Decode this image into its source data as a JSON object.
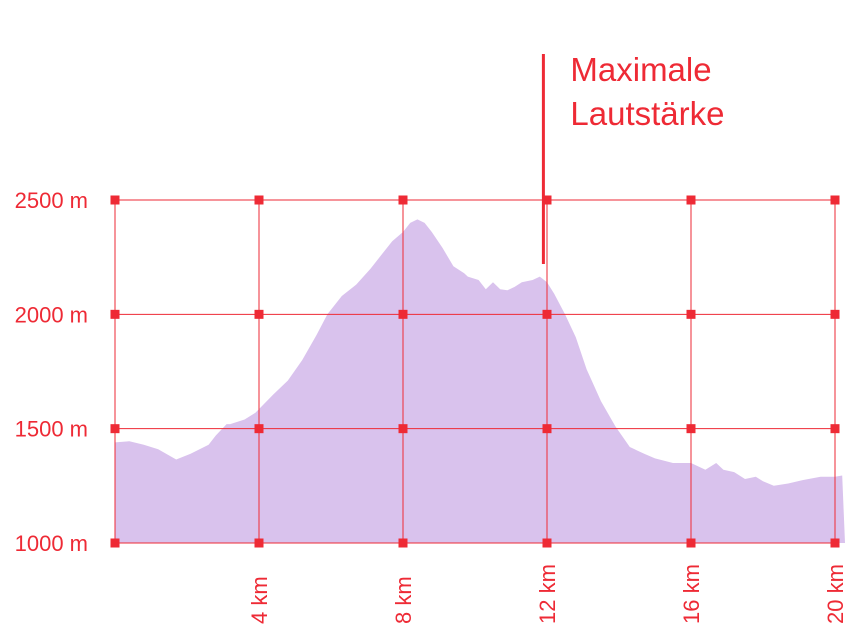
{
  "colors": {
    "accent": "#ee2a35",
    "area": "#d9c2ed",
    "background": "#ffffff"
  },
  "chart_data": {
    "type": "area",
    "title": "",
    "xlabel": "",
    "ylabel": "",
    "xlim": [
      0,
      20
    ],
    "ylim": [
      1000,
      2500
    ],
    "grid": true,
    "y_ticks": [
      {
        "value": 2500,
        "label": "2500 m"
      },
      {
        "value": 2000,
        "label": "2000 m"
      },
      {
        "value": 1500,
        "label": "1500 m"
      },
      {
        "value": 1000,
        "label": "1000 m"
      }
    ],
    "x_ticks": [
      {
        "value": 4,
        "label": "4 km"
      },
      {
        "value": 8,
        "label": "8 km"
      },
      {
        "value": 12,
        "label": "12 km"
      },
      {
        "value": 16,
        "label": "16 km"
      },
      {
        "value": 20,
        "label": "20 km"
      }
    ],
    "annotation": {
      "line1": "Maximale",
      "line2": "Lautstärke",
      "x": 11.9
    },
    "series": [
      {
        "x": [
          0,
          0.4,
          0.8,
          1.2,
          1.7,
          2.1,
          2.6,
          2.8,
          3.1,
          3.2,
          3.6,
          3.9,
          4.4,
          4.8,
          5.2,
          5.6,
          5.9,
          6.3,
          6.7,
          7.1,
          7.4,
          7.7,
          8.0,
          8.2,
          8.4,
          8.6,
          8.8,
          9.1,
          9.4,
          9.7,
          9.8,
          10.1,
          10.3,
          10.5,
          10.7,
          10.9,
          11.1,
          11.3,
          11.6,
          11.8,
          12.0,
          12.2,
          12.5,
          12.8,
          13.1,
          13.5,
          13.9,
          14.3,
          14.7,
          15.0,
          15.5,
          16.0,
          16.4,
          16.7,
          16.9,
          17.2,
          17.5,
          17.8,
          18.0,
          18.3,
          18.7,
          19.1,
          19.6,
          20.0,
          20.2
        ],
        "y": [
          1440,
          1445,
          1430,
          1410,
          1365,
          1390,
          1430,
          1470,
          1520,
          1520,
          1540,
          1570,
          1650,
          1710,
          1800,
          1910,
          2000,
          2080,
          2130,
          2200,
          2260,
          2320,
          2360,
          2400,
          2415,
          2400,
          2360,
          2290,
          2210,
          2180,
          2165,
          2150,
          2110,
          2140,
          2110,
          2105,
          2120,
          2140,
          2150,
          2165,
          2140,
          2090,
          2000,
          1900,
          1760,
          1620,
          1510,
          1420,
          1390,
          1370,
          1350,
          1350,
          1320,
          1350,
          1320,
          1310,
          1280,
          1290,
          1270,
          1250,
          1260,
          1275,
          1290,
          1290,
          1295
        ]
      }
    ]
  }
}
